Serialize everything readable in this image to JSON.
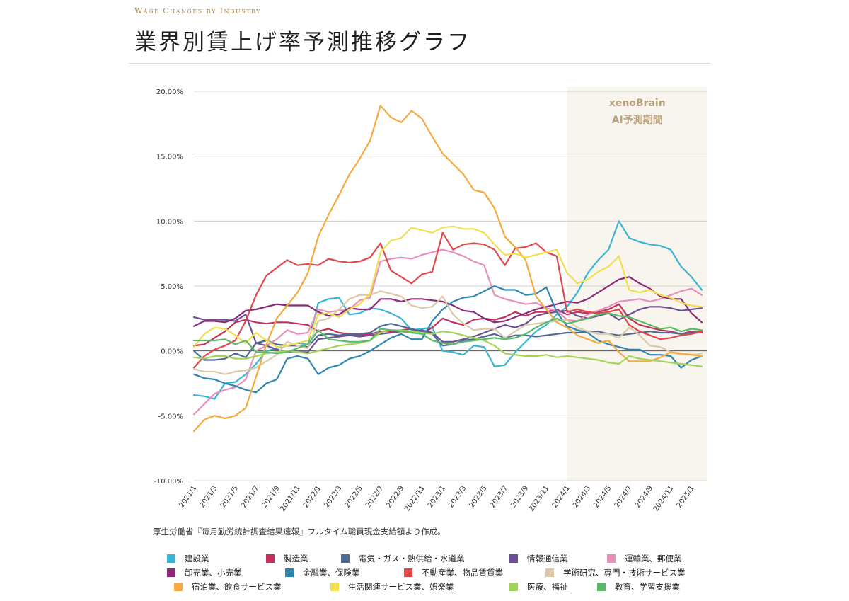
{
  "header": {
    "eyebrow": "Wage Changes by Industry",
    "title": "業界別賃上げ率予測推移グラフ"
  },
  "source_note": "厚生労働省『毎月勤労統計調査結果速報』フルタイム職員現金支給額より作成。",
  "chart_data": {
    "type": "line",
    "title": "業界別賃上げ率予測推移グラフ",
    "xlabel": "",
    "ylabel": "",
    "ylim": [
      -10,
      20
    ],
    "yticks": [
      -10,
      -5,
      0,
      5,
      10,
      15,
      20
    ],
    "ytick_labels": [
      "-10.00%",
      "-5.00%",
      "0.00%",
      "5.00%",
      "10.00%",
      "15.00%",
      "20.00%"
    ],
    "x_start": "2021/1",
    "x_end": "2025/2",
    "xtick_labels": [
      "2021/1",
      "2021/3",
      "2021/5",
      "2021/7",
      "2021/9",
      "2021/11",
      "2022/1",
      "2022/3",
      "2022/5",
      "2022/7",
      "2022/9",
      "2022/11",
      "2023/1",
      "2023/3",
      "2023/5",
      "2023/7",
      "2023/9",
      "2023/11",
      "2024/1",
      "2024/3",
      "2024/5",
      "2024/7",
      "2024/9",
      "2024/11",
      "2025/1"
    ],
    "forecast_region": {
      "start": "2024/1",
      "end": "2025/2",
      "label_line1": "xenoBrain",
      "label_line2": "AI予測期間"
    },
    "grid": "horizontal",
    "legend_position": "bottom",
    "series": [
      {
        "name": "建設業",
        "color": "#3cb4d4",
        "values": [
          -3.4,
          -3.5,
          -3.7,
          -2.5,
          -2.4,
          -1.8,
          -1.0,
          0.0,
          0.2,
          0.4,
          0.6,
          0.5,
          3.7,
          4.0,
          4.1,
          2.8,
          2.9,
          3.3,
          3.2,
          2.9,
          2.5,
          1.6,
          1.7,
          1.8,
          0.0,
          -0.1,
          -0.3,
          0.4,
          0.3,
          -1.2,
          -1.1,
          -0.1,
          0.7,
          1.5,
          2.0,
          2.8,
          3.4,
          4.5,
          6.0,
          7.0,
          7.8,
          10.0,
          8.7,
          8.4,
          8.2,
          8.1,
          7.8,
          6.5,
          5.7,
          4.7
        ]
      },
      {
        "name": "製造業",
        "color": "#c2305c",
        "values": [
          0.4,
          0.5,
          1.0,
          1.5,
          2.2,
          2.4,
          2.2,
          2.1,
          2.2,
          2.2,
          2.1,
          2.0,
          1.5,
          1.7,
          1.4,
          1.3,
          1.2,
          1.3,
          1.5,
          1.5,
          1.6,
          1.7,
          1.3,
          1.8,
          2.5,
          2.2,
          2.0,
          2.4,
          2.5,
          2.4,
          2.6,
          3.0,
          2.7,
          3.0,
          3.0,
          3.2,
          2.8,
          3.0,
          2.9,
          3.0,
          3.2,
          3.6,
          2.5,
          2.0,
          1.8,
          1.6,
          1.5,
          1.3,
          1.5,
          1.4
        ]
      },
      {
        "name": "電気・ガス・熱供給・水道業",
        "color": "#4e6b96",
        "values": [
          0.0,
          -0.7,
          -0.7,
          -0.6,
          -0.2,
          -0.5,
          0.6,
          0.8,
          0.5,
          0.4,
          0.4,
          0.3,
          1.2,
          1.3,
          1.2,
          1.3,
          1.3,
          1.4,
          1.9,
          2.1,
          1.9,
          1.7,
          1.5,
          1.3,
          0.4,
          0.5,
          0.8,
          0.9,
          1.1,
          1.3,
          1.0,
          1.2,
          1.2,
          1.1,
          1.2,
          1.3,
          1.4,
          1.4,
          1.5,
          1.5,
          1.3,
          1.2,
          1.3,
          1.4,
          1.5,
          1.4,
          1.4,
          1.3,
          1.4,
          1.5
        ]
      },
      {
        "name": "情報通信業",
        "color": "#6a4f95",
        "values": [
          2.6,
          2.4,
          2.4,
          2.4,
          2.3,
          2.8,
          0.6,
          0.4,
          0.1,
          -0.1,
          -0.1,
          -0.1,
          0.9,
          1.0,
          1.1,
          1.2,
          1.1,
          1.2,
          1.3,
          1.4,
          1.5,
          1.4,
          1.6,
          1.4,
          0.7,
          0.7,
          0.9,
          1.1,
          1.4,
          1.7,
          2.0,
          1.8,
          2.1,
          2.7,
          2.9,
          3.0,
          3.1,
          2.7,
          2.5,
          2.7,
          2.9,
          2.4,
          2.8,
          3.2,
          3.4,
          3.4,
          3.3,
          3.1,
          3.2,
          3.3
        ]
      },
      {
        "name": "運輸業、郵便業",
        "color": "#e88fbd",
        "values": [
          -4.9,
          -4.1,
          -3.3,
          -3.0,
          -2.8,
          -2.2,
          0.0,
          0.4,
          0.9,
          1.6,
          1.3,
          1.4,
          3.2,
          3.0,
          3.1,
          3.2,
          3.9,
          4.1,
          6.9,
          7.1,
          7.2,
          7.1,
          7.4,
          7.6,
          7.8,
          7.6,
          7.3,
          6.9,
          6.6,
          4.3,
          4.0,
          3.8,
          3.6,
          3.7,
          3.3,
          3.1,
          2.4,
          2.3,
          2.8,
          3.1,
          3.4,
          3.8,
          3.9,
          4.0,
          3.8,
          4.0,
          4.3,
          4.6,
          4.8,
          4.3
        ]
      },
      {
        "name": "卸売業、小売業",
        "color": "#8c2a78",
        "values": [
          1.9,
          2.3,
          2.3,
          2.2,
          2.5,
          3.1,
          3.2,
          3.4,
          3.6,
          3.5,
          3.5,
          3.5,
          3.0,
          2.7,
          2.8,
          3.3,
          3.2,
          3.2,
          4.0,
          4.0,
          3.8,
          4.0,
          4.0,
          3.9,
          3.8,
          3.5,
          3.1,
          3.0,
          2.5,
          2.2,
          2.3,
          2.6,
          2.9,
          3.2,
          3.4,
          3.6,
          3.8,
          3.7,
          4.0,
          4.5,
          5.0,
          5.5,
          5.7,
          5.2,
          4.8,
          4.2,
          4.0,
          4.0,
          2.9,
          2.2
        ]
      },
      {
        "name": "金融業、保険業",
        "color": "#2e86b0",
        "values": [
          -1.8,
          -2.1,
          -2.2,
          -2.5,
          -2.7,
          -3.0,
          -3.2,
          -2.5,
          -2.2,
          -0.6,
          -0.4,
          -0.6,
          -1.8,
          -1.3,
          -1.1,
          -0.6,
          -0.4,
          0.0,
          0.5,
          1.0,
          1.3,
          0.9,
          0.9,
          2.3,
          3.2,
          3.8,
          4.1,
          4.2,
          4.6,
          5.0,
          4.7,
          4.7,
          4.3,
          4.4,
          4.9,
          3.0,
          1.9,
          1.6,
          1.4,
          0.8,
          0.5,
          0.3,
          0.1,
          0.1,
          -0.3,
          -0.3,
          -0.4,
          -1.3,
          -0.7,
          -0.4
        ]
      },
      {
        "name": "不動産業、物品賃貸業",
        "color": "#e0474c",
        "values": [
          -1.3,
          -0.4,
          0.1,
          0.4,
          0.8,
          2.3,
          4.3,
          5.8,
          6.4,
          7.0,
          6.6,
          6.7,
          6.6,
          7.1,
          6.9,
          6.8,
          6.9,
          7.2,
          8.3,
          6.2,
          5.7,
          5.2,
          5.9,
          6.1,
          9.1,
          7.8,
          8.2,
          8.3,
          8.2,
          7.8,
          6.6,
          7.9,
          8.0,
          8.3,
          7.6,
          7.3,
          3.0,
          3.2,
          3.0,
          2.9,
          3.0,
          3.2,
          2.0,
          1.5,
          1.2,
          0.9,
          1.0,
          1.2,
          1.3,
          1.5
        ]
      },
      {
        "name": "学術研究、専門・技術サービス業",
        "color": "#dcc9a9",
        "values": [
          -1.4,
          -1.6,
          -1.6,
          -1.8,
          -1.6,
          -1.5,
          -1.3,
          -0.8,
          -0.3,
          0.7,
          0.4,
          0.2,
          2.3,
          2.5,
          3.2,
          4.0,
          4.3,
          4.3,
          4.6,
          4.4,
          4.2,
          3.5,
          3.3,
          3.4,
          4.2,
          2.8,
          2.1,
          1.6,
          1.7,
          1.7,
          1.0,
          1.5,
          2.0,
          2.1,
          2.2,
          2.3,
          2.4,
          1.8,
          1.5,
          1.3,
          1.3,
          1.0,
          1.8,
          1.2,
          0.4,
          0.3,
          -0.1,
          -0.3,
          -0.3,
          -0.2
        ]
      },
      {
        "name": "宿泊業、飲食サービス業",
        "color": "#f5a93e",
        "values": [
          -6.2,
          -5.3,
          -5.0,
          -5.2,
          -5.0,
          -4.4,
          -2.0,
          0.5,
          2.5,
          3.5,
          4.5,
          6.0,
          8.8,
          10.5,
          12.0,
          13.6,
          14.8,
          16.2,
          18.9,
          18.0,
          17.6,
          18.5,
          17.9,
          16.5,
          15.2,
          14.4,
          13.6,
          12.4,
          12.2,
          11.0,
          8.8,
          8.0,
          7.0,
          4.2,
          3.2,
          2.2,
          1.8,
          1.2,
          0.9,
          0.6,
          0.8,
          -0.1,
          -0.8,
          -0.8,
          -0.8,
          -0.5,
          -0.1,
          -0.2,
          -0.3,
          -0.4
        ]
      },
      {
        "name": "生活関連サービス業、娯楽業",
        "color": "#f1df50",
        "values": [
          0.3,
          1.3,
          1.8,
          1.7,
          1.2,
          0.6,
          1.4,
          0.8,
          0.3,
          0.4,
          0.6,
          0.8,
          2.8,
          2.9,
          2.6,
          3.2,
          3.6,
          4.4,
          7.6,
          8.5,
          8.7,
          9.5,
          9.3,
          9.1,
          9.5,
          9.6,
          9.4,
          9.4,
          9.1,
          8.2,
          7.4,
          7.5,
          7.2,
          7.4,
          7.6,
          7.8,
          6.0,
          5.2,
          5.5,
          6.1,
          6.5,
          7.3,
          4.7,
          4.5,
          4.7,
          4.3,
          4.1,
          3.7,
          3.5,
          3.4
        ]
      },
      {
        "name": "医療、福祉",
        "color": "#a3d45a",
        "values": [
          -0.5,
          -0.6,
          -0.4,
          -0.4,
          -0.6,
          -0.6,
          -0.4,
          -0.2,
          -0.1,
          0.0,
          -0.1,
          -0.2,
          0.0,
          0.2,
          0.4,
          0.5,
          0.6,
          0.8,
          1.4,
          1.6,
          1.6,
          1.5,
          1.4,
          1.3,
          1.5,
          1.4,
          1.2,
          1.0,
          0.8,
          0.4,
          -0.2,
          -0.3,
          -0.4,
          -0.4,
          -0.3,
          -0.5,
          -0.4,
          -0.5,
          -0.6,
          -0.7,
          -0.9,
          -1.0,
          -0.4,
          -0.6,
          -0.7,
          -0.8,
          -0.9,
          -1.0,
          -1.1,
          -1.2
        ]
      },
      {
        "name": "教育、学習支援業",
        "color": "#5bba6a",
        "values": [
          0.8,
          0.8,
          0.8,
          0.9,
          0.5,
          0.8,
          -0.1,
          -0.1,
          -0.2,
          -0.1,
          0.2,
          0.5,
          1.6,
          0.9,
          0.8,
          0.7,
          0.7,
          0.8,
          1.7,
          1.6,
          1.5,
          1.4,
          1.3,
          0.8,
          0.6,
          0.5,
          0.7,
          0.8,
          0.9,
          1.0,
          0.9,
          1.0,
          1.3,
          1.8,
          2.2,
          2.5,
          2.1,
          2.3,
          2.5,
          2.8,
          2.9,
          2.7,
          2.6,
          2.3,
          2.0,
          1.7,
          1.8,
          1.5,
          1.7,
          1.6
        ]
      }
    ]
  }
}
